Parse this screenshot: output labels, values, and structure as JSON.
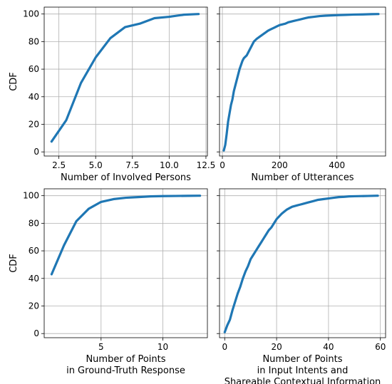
{
  "colors": {
    "series": "#1f77b4",
    "grid": "#b0b0b0",
    "axis": "#000000"
  },
  "chart_data": [
    {
      "type": "line",
      "xlabel": "Number of Involved Persons",
      "ylabel": "CDF",
      "xlim": [
        1.5,
        12.6
      ],
      "ylim": [
        -3,
        105
      ],
      "xticks": [
        2.5,
        5.0,
        7.5,
        10.0,
        12.5
      ],
      "xtick_labels": [
        "2.5",
        "5.0",
        "7.5",
        "10.0",
        "12.5"
      ],
      "yticks": [
        0,
        20,
        40,
        60,
        80,
        100
      ],
      "ytick_labels": [
        "0",
        "20",
        "40",
        "60",
        "80",
        "100"
      ],
      "grid": true,
      "series": [
        {
          "x": [
            2,
            3,
            4,
            5,
            6,
            7,
            8,
            9,
            10,
            11,
            12
          ],
          "y": [
            7.5,
            23,
            50,
            68.5,
            82.5,
            90.5,
            93,
            97,
            98,
            99.5,
            100
          ]
        }
      ]
    },
    {
      "type": "line",
      "xlabel": "Number of Utterances",
      "ylabel": "",
      "xlim": [
        -10,
        570
      ],
      "ylim": [
        -3,
        105
      ],
      "xticks": [
        0,
        200,
        400
      ],
      "xtick_labels": [
        "0",
        "200",
        "400"
      ],
      "yticks": [
        0,
        20,
        40,
        60,
        80,
        100
      ],
      "ytick_labels": [],
      "grid": true,
      "series": [
        {
          "x": [
            5,
            10,
            15,
            20,
            25,
            30,
            35,
            40,
            45,
            50,
            55,
            60,
            65,
            70,
            75,
            80,
            85,
            90,
            95,
            100,
            110,
            120,
            130,
            140,
            150,
            160,
            170,
            180,
            190,
            200,
            210,
            220,
            230,
            240,
            250,
            260,
            270,
            280,
            290,
            300,
            320,
            340,
            360,
            380,
            400,
            430,
            460,
            490,
            520,
            545
          ],
          "y": [
            1,
            5,
            13,
            22,
            28,
            34,
            38,
            44,
            48,
            52,
            56,
            60,
            63,
            66,
            68,
            69,
            70,
            72,
            74,
            76,
            80,
            82,
            83.5,
            85,
            86.5,
            88,
            89,
            90,
            91,
            92,
            92.5,
            93,
            94,
            94.5,
            95,
            95.5,
            96,
            96.5,
            97,
            97.5,
            98,
            98.5,
            98.8,
            99,
            99.2,
            99.4,
            99.6,
            99.7,
            99.9,
            100
          ]
        }
      ]
    },
    {
      "type": "line",
      "xlabel": "Number of Points\nin Ground-Truth Response",
      "ylabel": "CDF",
      "xlim": [
        0.4,
        13.6
      ],
      "ylim": [
        -3,
        105
      ],
      "xticks": [
        5,
        10
      ],
      "xtick_labels": [
        "5",
        "10"
      ],
      "yticks": [
        0,
        20,
        40,
        60,
        80,
        100
      ],
      "ytick_labels": [
        "0",
        "20",
        "40",
        "60",
        "80",
        "100"
      ],
      "grid": true,
      "series": [
        {
          "x": [
            1,
            2,
            3,
            4,
            5,
            6,
            7,
            8,
            9,
            10,
            11,
            12,
            13
          ],
          "y": [
            43,
            64,
            81.5,
            90.5,
            95.5,
            97.5,
            98.5,
            99,
            99.5,
            99.7,
            99.8,
            99.9,
            100
          ]
        }
      ]
    },
    {
      "type": "line",
      "xlabel": "Number of Points\nin Input Intents and\nShareable Contextual Information",
      "ylabel": "",
      "xlim": [
        -2,
        62
      ],
      "ylim": [
        -3,
        105
      ],
      "xticks": [
        0,
        20,
        40,
        60
      ],
      "xtick_labels": [
        "0",
        "20",
        "40",
        "60"
      ],
      "yticks": [
        0,
        20,
        40,
        60,
        80,
        100
      ],
      "ytick_labels": [],
      "grid": true,
      "series": [
        {
          "x": [
            0,
            1,
            2,
            3,
            4,
            5,
            6,
            7,
            8,
            9,
            10,
            11,
            12,
            13,
            14,
            15,
            16,
            17,
            18,
            19,
            20,
            21,
            22,
            23,
            24,
            25,
            26,
            27,
            28,
            29,
            30,
            32,
            34,
            36,
            38,
            40,
            42,
            44,
            46,
            48,
            50,
            55,
            59
          ],
          "y": [
            1,
            6,
            10,
            17,
            23,
            29,
            34,
            40,
            45,
            49,
            54,
            57,
            60,
            63,
            66,
            69,
            72,
            75,
            77,
            80,
            83,
            85,
            87,
            88.5,
            90,
            91,
            92,
            92.5,
            93,
            93.5,
            94,
            95,
            96,
            97,
            97.5,
            98,
            98.5,
            99,
            99.2,
            99.5,
            99.6,
            99.8,
            100
          ]
        }
      ]
    }
  ]
}
